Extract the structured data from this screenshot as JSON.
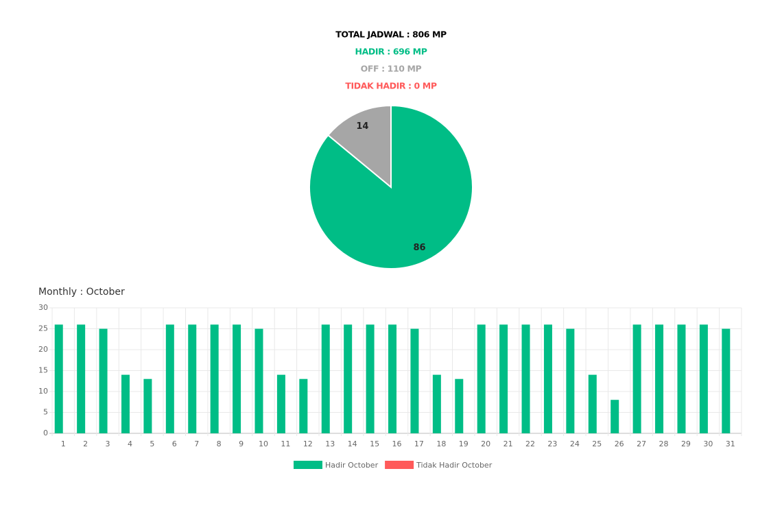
{
  "summary": {
    "total": "TOTAL JADWAL : 806 MP",
    "hadir": "HADIR : 696 MP",
    "off": "OFF : 110 MP",
    "tidak_hadir": "TIDAK HADIR : 0 MP"
  },
  "chart_data": [
    {
      "type": "pie",
      "values": [
        86,
        14
      ],
      "colors": [
        "#00bd86",
        "#a6a6a6"
      ]
    },
    {
      "type": "bar",
      "title": "Monthly : October",
      "categories": [
        "1",
        "2",
        "3",
        "4",
        "5",
        "6",
        "7",
        "8",
        "9",
        "10",
        "11",
        "12",
        "13",
        "14",
        "15",
        "16",
        "17",
        "18",
        "19",
        "20",
        "21",
        "22",
        "23",
        "24",
        "25",
        "26",
        "27",
        "28",
        "29",
        "30",
        "31"
      ],
      "series": [
        {
          "name": "Hadir October",
          "color": "#00bd86",
          "values": [
            26,
            26,
            25,
            14,
            13,
            26,
            26,
            26,
            26,
            25,
            14,
            13,
            26,
            26,
            26,
            26,
            25,
            14,
            13,
            26,
            26,
            26,
            26,
            25,
            14,
            8,
            26,
            26,
            26,
            26,
            25
          ]
        },
        {
          "name": "Tidak Hadir October",
          "color": "#ff5a5a",
          "values": [
            0,
            0,
            0,
            0,
            0,
            0,
            0,
            0,
            0,
            0,
            0,
            0,
            0,
            0,
            0,
            0,
            0,
            0,
            0,
            0,
            0,
            0,
            0,
            0,
            0,
            0,
            0,
            0,
            0,
            0,
            0
          ]
        }
      ],
      "ylim": [
        0,
        30
      ],
      "yticks": [
        0,
        5,
        10,
        15,
        20,
        25,
        30
      ],
      "grid": true
    }
  ]
}
